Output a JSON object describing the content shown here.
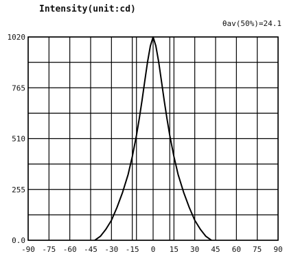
{
  "chart_data": {
    "type": "line",
    "title": "Intensity(unit:cd)",
    "annotation": "θav(50%)=24.1",
    "xlabel": "",
    "ylabel": "",
    "xlim": [
      -90,
      90
    ],
    "ylim": [
      0,
      1020
    ],
    "x_ticks": [
      "-90",
      "-75",
      "-60",
      "-45",
      "-30",
      "-15",
      "0",
      "15",
      "30",
      "45",
      "60",
      "75",
      "90"
    ],
    "y_ticks": [
      "0.0",
      "255",
      "510",
      "765",
      "1020"
    ],
    "grid": true,
    "series": [
      {
        "x": [
          -42,
          -38,
          -34,
          -30,
          -26,
          -22,
          -18,
          -15,
          -12,
          -10,
          -8,
          -6,
          -4,
          -2,
          0,
          2,
          4,
          6,
          8,
          10,
          12,
          15,
          18,
          22,
          26,
          30,
          34,
          38,
          42
        ],
        "values": [
          0,
          20,
          55,
          100,
          165,
          240,
          330,
          420,
          525,
          610,
          700,
          800,
          895,
          975,
          1020,
          975,
          895,
          800,
          700,
          610,
          525,
          420,
          330,
          240,
          165,
          100,
          55,
          20,
          0
        ]
      }
    ],
    "markers_x": [
      -12,
      12
    ]
  }
}
